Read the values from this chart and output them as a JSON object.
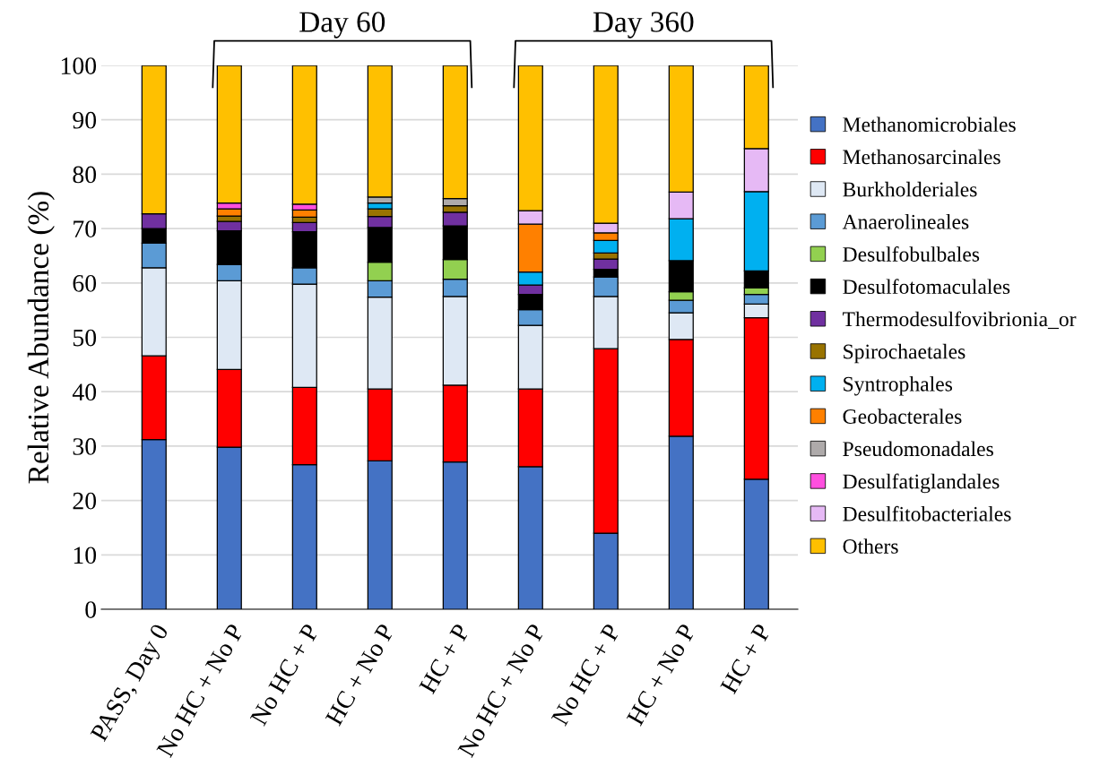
{
  "chart_data": {
    "type": "bar",
    "stacked": true,
    "ylabel": "Relative Abundance (%)",
    "categories": [
      "PASS, Day 0",
      "No HC + No P",
      "No HC + P",
      "HC + No P",
      "HC + P",
      "No HC + No P",
      "No HC + P",
      "HC + No P",
      "HC + P"
    ],
    "series": [
      {
        "name": "Methanomicrobiales",
        "color": "#4472c4",
        "values": [
          31.2,
          29.8,
          26.6,
          27.3,
          27.1,
          26.2,
          14.0,
          31.8,
          23.9
        ]
      },
      {
        "name": "Methanosarcinales",
        "color": "#ff0000",
        "values": [
          15.4,
          14.3,
          14.2,
          13.2,
          14.1,
          14.3,
          33.9,
          17.8,
          29.7
        ]
      },
      {
        "name": "Burkholderiales",
        "color": "#dee8f4",
        "values": [
          16.2,
          16.3,
          19.0,
          16.9,
          16.3,
          11.7,
          9.6,
          4.9,
          2.5
        ]
      },
      {
        "name": "Anaerolineales",
        "color": "#5b9bd5",
        "values": [
          4.5,
          3.0,
          3.0,
          3.0,
          3.2,
          2.9,
          3.6,
          2.3,
          1.8
        ]
      },
      {
        "name": "Desulfobulbales",
        "color": "#92d050",
        "values": [
          null,
          null,
          null,
          3.4,
          3.6,
          null,
          null,
          1.6,
          1.2
        ]
      },
      {
        "name": "Desulfotomaculales",
        "color": "#000000",
        "values": [
          2.7,
          6.2,
          6.6,
          6.4,
          6.2,
          2.8,
          1.4,
          5.7,
          3.1
        ]
      },
      {
        "name": "Thermodesulfovibrionia_or",
        "color": "#7030a0",
        "values": [
          2.7,
          1.7,
          1.7,
          2.0,
          2.5,
          1.7,
          1.9,
          null,
          null
        ]
      },
      {
        "name": "Spirochaetales",
        "color": "#997300",
        "values": [
          null,
          1.0,
          1.0,
          1.4,
          1.2,
          null,
          1.1,
          null,
          null
        ]
      },
      {
        "name": "Syntrophales",
        "color": "#00b0f0",
        "values": [
          null,
          null,
          null,
          1.1,
          null,
          2.4,
          2.3,
          7.7,
          14.6
        ]
      },
      {
        "name": "Geobacterales",
        "color": "#ff8000",
        "values": [
          null,
          1.3,
          1.3,
          null,
          null,
          8.8,
          1.4,
          null,
          null
        ]
      },
      {
        "name": "Pseudomonadales",
        "color": "#aeaaaa",
        "values": [
          null,
          null,
          null,
          1.1,
          1.3,
          null,
          null,
          null,
          null
        ]
      },
      {
        "name": "Desulfatiglandales",
        "color": "#ff4fdf",
        "values": [
          null,
          1.1,
          1.1,
          null,
          null,
          null,
          null,
          null,
          null
        ]
      },
      {
        "name": "Desulfitobacteriales",
        "color": "#e6b9f5",
        "values": [
          null,
          null,
          null,
          null,
          null,
          2.5,
          1.8,
          4.9,
          7.9
        ]
      },
      {
        "name": "Others",
        "color": "#ffc000",
        "values": [
          27.3,
          25.3,
          25.5,
          24.2,
          24.5,
          26.7,
          29.0,
          23.3,
          15.3
        ]
      }
    ],
    "ylim": [
      0,
      100
    ],
    "yticks": [
      0,
      10,
      20,
      30,
      40,
      50,
      60,
      70,
      80,
      90,
      100
    ],
    "grid": "y",
    "legend": "right",
    "annotations": [
      "Day 60",
      "Day 360"
    ]
  }
}
